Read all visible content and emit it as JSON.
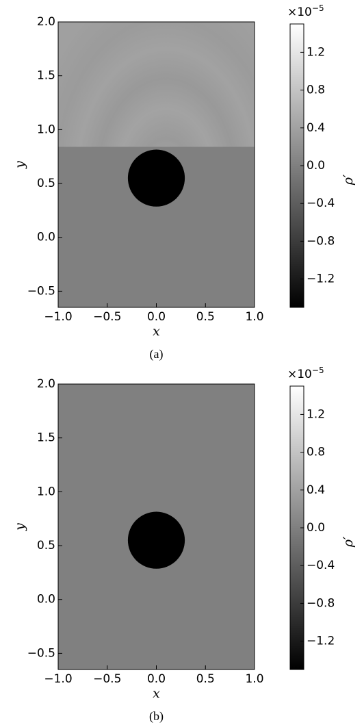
{
  "chart_data": [
    {
      "type": "heatmap",
      "caption": "(a)",
      "xlabel": "x",
      "ylabel": "y",
      "colorbar_label": "ρ′",
      "colorbar_multiplier": "×10",
      "colorbar_exponent": "−5",
      "colormap": "gray",
      "xlim": [
        -1.0,
        1.0
      ],
      "ylim": [
        -0.65,
        2.0
      ],
      "clim": [
        -1.5,
        1.5
      ],
      "xticks": [
        {
          "value": -1.0,
          "label": "−1.0"
        },
        {
          "value": -0.5,
          "label": "−0.5"
        },
        {
          "value": 0,
          "label": "0.0"
        },
        0.5,
        {
          "value": 1.0,
          "label": "1.0"
        }
      ],
      "yticks": [
        {
          "value": -0.5,
          "label": "−0.5"
        },
        {
          "value": 0,
          "label": "0.0"
        },
        0.5,
        {
          "value": 1.0,
          "label": "1.0"
        },
        1.5,
        {
          "value": 2.0,
          "label": "2.0"
        }
      ],
      "cticks": [
        {
          "value": -1.2,
          "label": "−1.2"
        },
        {
          "value": -0.8,
          "label": "−0.8"
        },
        {
          "value": -0.4,
          "label": "−0.4"
        },
        {
          "value": 0,
          "label": "0.0"
        },
        0.4,
        0.8,
        1.2
      ],
      "body": {
        "cx": 0,
        "cy": 0.55,
        "r": 0.29,
        "value": -1.5
      },
      "waves": true
    },
    {
      "type": "heatmap",
      "caption": "(b)",
      "xlabel": "x",
      "ylabel": "y",
      "colorbar_label": "ρ′",
      "colorbar_multiplier": "×10",
      "colorbar_exponent": "−5",
      "colormap": "gray",
      "xlim": [
        -1.0,
        1.0
      ],
      "ylim": [
        -0.65,
        2.0
      ],
      "clim": [
        -1.5,
        1.5
      ],
      "xticks": [
        {
          "value": -1.0,
          "label": "−1.0"
        },
        {
          "value": -0.5,
          "label": "−0.5"
        },
        {
          "value": 0,
          "label": "0.0"
        },
        0.5,
        {
          "value": 1.0,
          "label": "1.0"
        }
      ],
      "yticks": [
        {
          "value": -0.5,
          "label": "−0.5"
        },
        {
          "value": 0,
          "label": "0.0"
        },
        0.5,
        {
          "value": 1.0,
          "label": "1.0"
        },
        1.5,
        {
          "value": 2.0,
          "label": "2.0"
        }
      ],
      "cticks": [
        {
          "value": -1.2,
          "label": "−1.2"
        },
        {
          "value": -0.8,
          "label": "−0.8"
        },
        {
          "value": -0.4,
          "label": "−0.4"
        },
        {
          "value": 0,
          "label": "0.0"
        },
        0.4,
        0.8,
        1.2
      ],
      "body": {
        "cx": 0,
        "cy": 0.55,
        "r": 0.29,
        "value": -1.5
      },
      "waves": false
    }
  ]
}
